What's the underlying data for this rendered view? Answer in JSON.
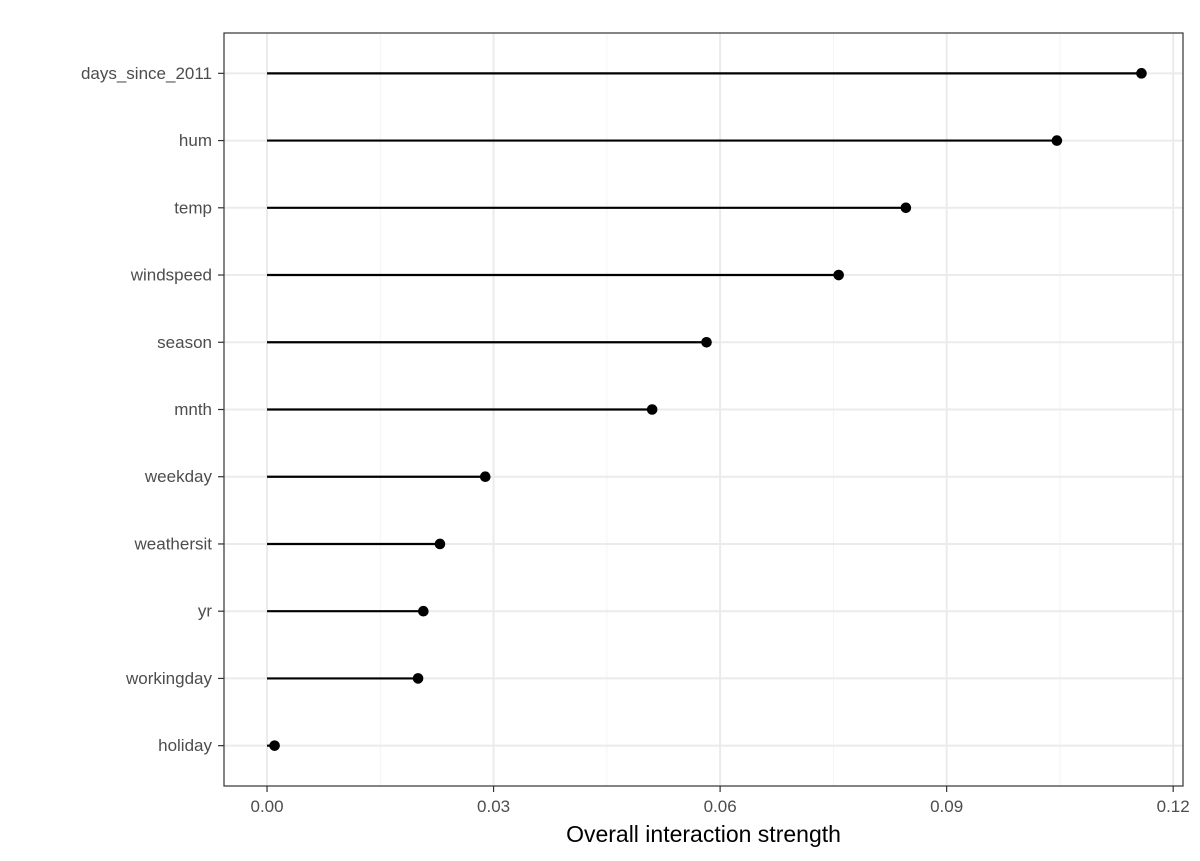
{
  "chart_data": {
    "type": "lollipop",
    "orientation": "horizontal",
    "categories": [
      "days_since_2011",
      "hum",
      "temp",
      "windspeed",
      "season",
      "mnth",
      "weekday",
      "weathersit",
      "yr",
      "workingday",
      "holiday"
    ],
    "values": [
      0.1158,
      0.1046,
      0.0846,
      0.0757,
      0.0582,
      0.051,
      0.0289,
      0.0229,
      0.0207,
      0.02,
      0.001
    ],
    "xlabel": "Overall interaction strength",
    "ylabel": "",
    "xlim": [
      -0.0057,
      0.1213
    ],
    "xticks": [
      0.0,
      0.03,
      0.06,
      0.09,
      0.12
    ],
    "xtick_labels": [
      "0.00",
      "0.03",
      "0.06",
      "0.09",
      "0.12"
    ],
    "grid": true,
    "theme": "bw",
    "colors": {
      "mark": "#000000",
      "grid_major": "#ebebeb",
      "grid_minor": "#f4f4f4",
      "panel_border": "#333333",
      "tick_text": "#4d4d4d"
    }
  }
}
